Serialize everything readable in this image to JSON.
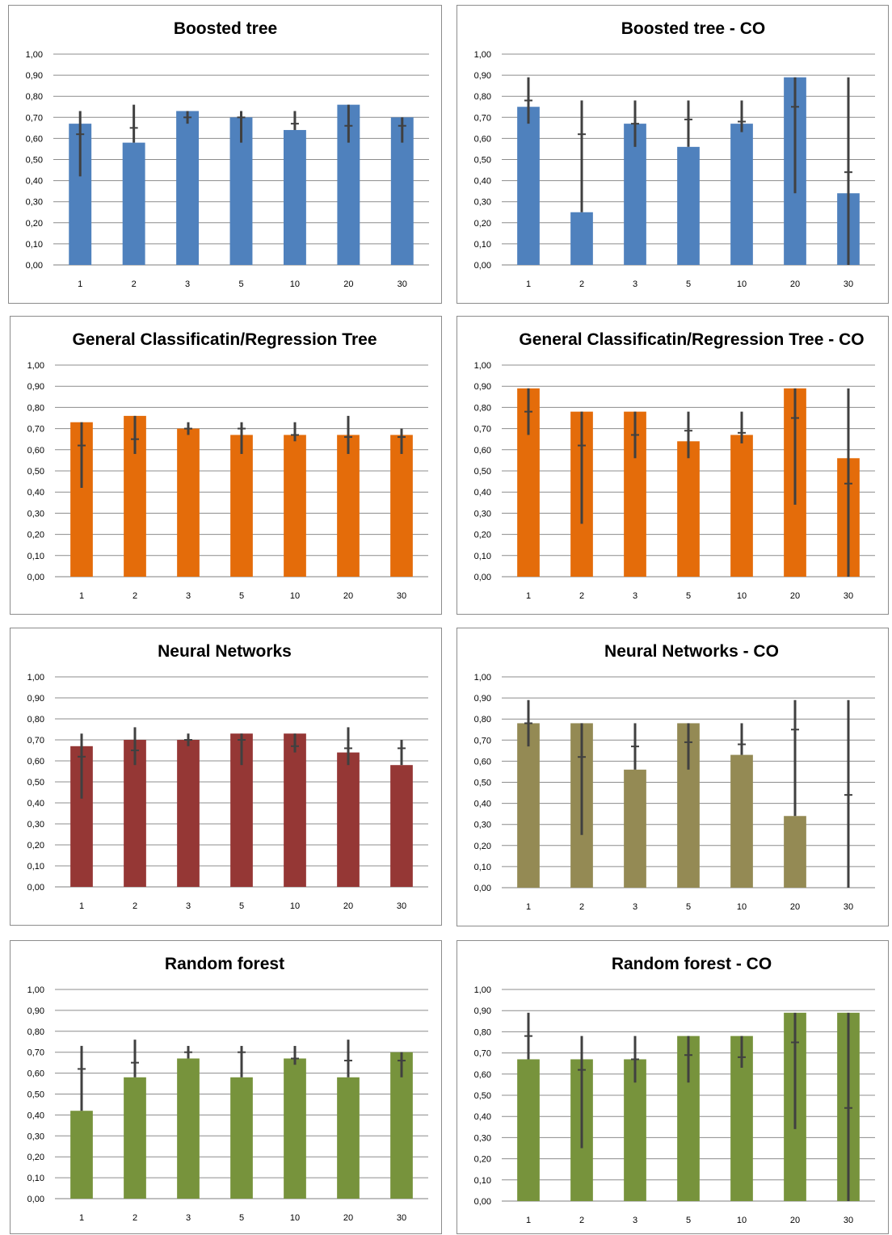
{
  "chart_data": [
    {
      "type": "bar",
      "title": "Boosted tree",
      "categories": [
        "1",
        "2",
        "3",
        "5",
        "10",
        "20",
        "30"
      ],
      "values": [
        0.67,
        0.58,
        0.73,
        0.7,
        0.64,
        0.76,
        0.7
      ],
      "error_bars": [
        {
          "low": 0.42,
          "mid": 0.62,
          "high": 0.73
        },
        {
          "low": 0.58,
          "mid": 0.65,
          "high": 0.76
        },
        {
          "low": 0.67,
          "mid": 0.7,
          "high": 0.73
        },
        {
          "low": 0.58,
          "mid": 0.7,
          "high": 0.73
        },
        {
          "low": 0.64,
          "mid": 0.67,
          "high": 0.73
        },
        {
          "low": 0.58,
          "mid": 0.66,
          "high": 0.76
        },
        {
          "low": 0.58,
          "mid": 0.66,
          "high": 0.7
        }
      ],
      "ylim": [
        0,
        1
      ],
      "yticks": [
        "0,00",
        "0,10",
        "0,20",
        "0,30",
        "0,40",
        "0,50",
        "0,60",
        "0,70",
        "0,80",
        "0,90",
        "1,00"
      ],
      "color": "#4f81bd",
      "grid": true,
      "xlabel": "",
      "ylabel": ""
    },
    {
      "type": "bar",
      "title": "Boosted tree - CO",
      "categories": [
        "1",
        "2",
        "3",
        "5",
        "10",
        "20",
        "30"
      ],
      "values": [
        0.75,
        0.25,
        0.67,
        0.56,
        0.67,
        0.89,
        0.34
      ],
      "error_bars": [
        {
          "low": 0.67,
          "mid": 0.78,
          "high": 0.89
        },
        {
          "low": 0.25,
          "mid": 0.62,
          "high": 0.78
        },
        {
          "low": 0.56,
          "mid": 0.67,
          "high": 0.78
        },
        {
          "low": 0.56,
          "mid": 0.69,
          "high": 0.78
        },
        {
          "low": 0.63,
          "mid": 0.68,
          "high": 0.78
        },
        {
          "low": 0.34,
          "mid": 0.75,
          "high": 0.89
        },
        {
          "low": 0.0,
          "mid": 0.44,
          "high": 0.89
        }
      ],
      "ylim": [
        0,
        1
      ],
      "yticks": [
        "0,00",
        "0,10",
        "0,20",
        "0,30",
        "0,40",
        "0,50",
        "0,60",
        "0,70",
        "0,80",
        "0,90",
        "1,00"
      ],
      "color": "#4f81bd",
      "grid": true,
      "xlabel": "",
      "ylabel": ""
    },
    {
      "type": "bar",
      "title": "General Classificatin/Regression Tree",
      "categories": [
        "1",
        "2",
        "3",
        "5",
        "10",
        "20",
        "30"
      ],
      "values": [
        0.73,
        0.76,
        0.7,
        0.67,
        0.67,
        0.67,
        0.67
      ],
      "error_bars": [
        {
          "low": 0.42,
          "mid": 0.62,
          "high": 0.73
        },
        {
          "low": 0.58,
          "mid": 0.65,
          "high": 0.76
        },
        {
          "low": 0.67,
          "mid": 0.7,
          "high": 0.73
        },
        {
          "low": 0.58,
          "mid": 0.7,
          "high": 0.73
        },
        {
          "low": 0.64,
          "mid": 0.67,
          "high": 0.73
        },
        {
          "low": 0.58,
          "mid": 0.66,
          "high": 0.76
        },
        {
          "low": 0.58,
          "mid": 0.66,
          "high": 0.7
        }
      ],
      "ylim": [
        0,
        1
      ],
      "yticks": [
        "0,00",
        "0,10",
        "0,20",
        "0,30",
        "0,40",
        "0,50",
        "0,60",
        "0,70",
        "0,80",
        "0,90",
        "1,00"
      ],
      "color": "#e46c0a",
      "grid": true,
      "xlabel": "",
      "ylabel": ""
    },
    {
      "type": "bar",
      "title": "General Classificatin/Regression Tree - CO",
      "categories": [
        "1",
        "2",
        "3",
        "5",
        "10",
        "20",
        "30"
      ],
      "values": [
        0.89,
        0.78,
        0.78,
        0.64,
        0.67,
        0.89,
        0.56
      ],
      "error_bars": [
        {
          "low": 0.67,
          "mid": 0.78,
          "high": 0.89
        },
        {
          "low": 0.25,
          "mid": 0.62,
          "high": 0.78
        },
        {
          "low": 0.56,
          "mid": 0.67,
          "high": 0.78
        },
        {
          "low": 0.56,
          "mid": 0.69,
          "high": 0.78
        },
        {
          "low": 0.63,
          "mid": 0.68,
          "high": 0.78
        },
        {
          "low": 0.34,
          "mid": 0.75,
          "high": 0.89
        },
        {
          "low": 0.0,
          "mid": 0.44,
          "high": 0.89
        }
      ],
      "ylim": [
        0,
        1
      ],
      "yticks": [
        "0,00",
        "0,10",
        "0,20",
        "0,30",
        "0,40",
        "0,50",
        "0,60",
        "0,70",
        "0,80",
        "0,90",
        "1,00"
      ],
      "color": "#e46c0a",
      "grid": true,
      "xlabel": "",
      "ylabel": ""
    },
    {
      "type": "bar",
      "title": "Neural Networks",
      "categories": [
        "1",
        "2",
        "3",
        "5",
        "10",
        "20",
        "30"
      ],
      "values": [
        0.67,
        0.7,
        0.7,
        0.73,
        0.73,
        0.64,
        0.58
      ],
      "error_bars": [
        {
          "low": 0.42,
          "mid": 0.62,
          "high": 0.73
        },
        {
          "low": 0.58,
          "mid": 0.65,
          "high": 0.76
        },
        {
          "low": 0.67,
          "mid": 0.7,
          "high": 0.73
        },
        {
          "low": 0.58,
          "mid": 0.7,
          "high": 0.73
        },
        {
          "low": 0.64,
          "mid": 0.67,
          "high": 0.73
        },
        {
          "low": 0.58,
          "mid": 0.66,
          "high": 0.76
        },
        {
          "low": 0.58,
          "mid": 0.66,
          "high": 0.7
        }
      ],
      "ylim": [
        0,
        1
      ],
      "yticks": [
        "0,00",
        "0,10",
        "0,20",
        "0,30",
        "0,40",
        "0,50",
        "0,60",
        "0,70",
        "0,80",
        "0,90",
        "1,00"
      ],
      "color": "#953735",
      "grid": true,
      "xlabel": "",
      "ylabel": ""
    },
    {
      "type": "bar",
      "title": "Neural Networks - CO",
      "categories": [
        "1",
        "2",
        "3",
        "5",
        "10",
        "20",
        "30"
      ],
      "values": [
        0.78,
        0.78,
        0.56,
        0.78,
        0.63,
        0.34,
        0.0
      ],
      "error_bars": [
        {
          "low": 0.67,
          "mid": 0.78,
          "high": 0.89
        },
        {
          "low": 0.25,
          "mid": 0.62,
          "high": 0.78
        },
        {
          "low": 0.56,
          "mid": 0.67,
          "high": 0.78
        },
        {
          "low": 0.56,
          "mid": 0.69,
          "high": 0.78
        },
        {
          "low": 0.63,
          "mid": 0.68,
          "high": 0.78
        },
        {
          "low": 0.34,
          "mid": 0.75,
          "high": 0.89
        },
        {
          "low": 0.0,
          "mid": 0.44,
          "high": 0.89
        }
      ],
      "ylim": [
        0,
        1
      ],
      "yticks": [
        "0,00",
        "0,10",
        "0,20",
        "0,30",
        "0,40",
        "0,50",
        "0,60",
        "0,70",
        "0,80",
        "0,90",
        "1,00"
      ],
      "color": "#948a54",
      "grid": true,
      "xlabel": "",
      "ylabel": ""
    },
    {
      "type": "bar",
      "title": "Random forest",
      "categories": [
        "1",
        "2",
        "3",
        "5",
        "10",
        "20",
        "30"
      ],
      "values": [
        0.42,
        0.58,
        0.67,
        0.58,
        0.67,
        0.58,
        0.7
      ],
      "error_bars": [
        {
          "low": 0.42,
          "mid": 0.62,
          "high": 0.73
        },
        {
          "low": 0.58,
          "mid": 0.65,
          "high": 0.76
        },
        {
          "low": 0.67,
          "mid": 0.7,
          "high": 0.73
        },
        {
          "low": 0.58,
          "mid": 0.7,
          "high": 0.73
        },
        {
          "low": 0.64,
          "mid": 0.67,
          "high": 0.73
        },
        {
          "low": 0.58,
          "mid": 0.66,
          "high": 0.76
        },
        {
          "low": 0.58,
          "mid": 0.66,
          "high": 0.7
        }
      ],
      "ylim": [
        0,
        1
      ],
      "yticks": [
        "0,00",
        "0,10",
        "0,20",
        "0,30",
        "0,40",
        "0,50",
        "0,60",
        "0,70",
        "0,80",
        "0,90",
        "1,00"
      ],
      "color": "#77933c",
      "grid": true,
      "xlabel": "",
      "ylabel": ""
    },
    {
      "type": "bar",
      "title": "Random forest - CO",
      "categories": [
        "1",
        "2",
        "3",
        "5",
        "10",
        "20",
        "30"
      ],
      "values": [
        0.67,
        0.67,
        0.67,
        0.78,
        0.78,
        0.89,
        0.89
      ],
      "error_bars": [
        {
          "low": 0.67,
          "mid": 0.78,
          "high": 0.89
        },
        {
          "low": 0.25,
          "mid": 0.62,
          "high": 0.78
        },
        {
          "low": 0.56,
          "mid": 0.67,
          "high": 0.78
        },
        {
          "low": 0.56,
          "mid": 0.69,
          "high": 0.78
        },
        {
          "low": 0.63,
          "mid": 0.68,
          "high": 0.78
        },
        {
          "low": 0.34,
          "mid": 0.75,
          "high": 0.89
        },
        {
          "low": 0.0,
          "mid": 0.44,
          "high": 0.89
        }
      ],
      "ylim": [
        0,
        1
      ],
      "yticks": [
        "0,00",
        "0,10",
        "0,20",
        "0,30",
        "0,40",
        "0,50",
        "0,60",
        "0,70",
        "0,80",
        "0,90",
        "1,00"
      ],
      "color": "#77933c",
      "grid": true,
      "xlabel": "",
      "ylabel": ""
    }
  ]
}
